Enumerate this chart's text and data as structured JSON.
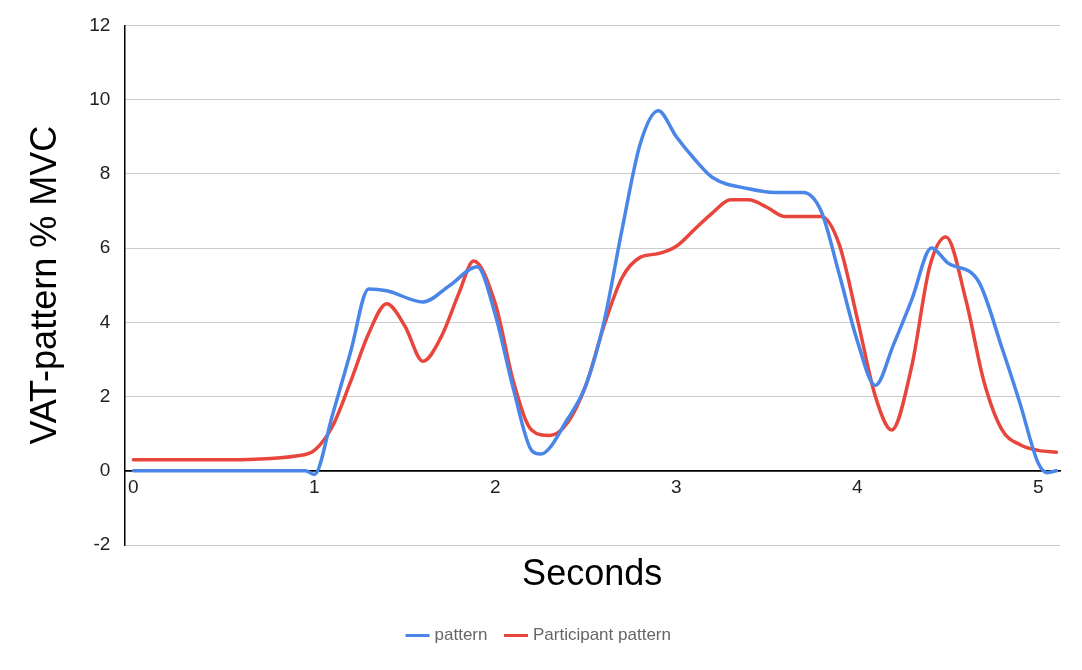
{
  "chart_data": {
    "type": "line",
    "xlabel": "Seconds",
    "ylabel": "VAT-pattern % MVC",
    "xlim": [
      -0.05,
      5.12
    ],
    "xticks": [
      0,
      1,
      2,
      3,
      4,
      5
    ],
    "ylim": [
      -2,
      12
    ],
    "yticks": [
      -2,
      0,
      2,
      4,
      6,
      8,
      10,
      12
    ],
    "grid": "y",
    "legend": "bottom",
    "marker": "none",
    "line_style": "solid",
    "series": [
      {
        "name": "pattern",
        "color": "#4a86e8",
        "x": [
          0,
          0.5,
          0.95,
          1.0,
          1.1,
          1.2,
          1.3,
          1.4,
          1.6,
          1.75,
          1.9,
          2.0,
          2.1,
          2.2,
          2.25,
          2.4,
          2.5,
          2.6,
          2.7,
          2.8,
          2.9,
          3.0,
          3.1,
          3.2,
          3.4,
          3.55,
          3.7,
          3.8,
          3.9,
          4.0,
          4.1,
          4.2,
          4.3,
          4.41,
          4.5,
          4.67,
          4.8,
          4.9,
          5.0,
          5.05,
          5.1
        ],
        "values": [
          0,
          0,
          0,
          -0.1,
          1.5,
          3.2,
          4.9,
          4.85,
          4.55,
          5.0,
          5.5,
          4.2,
          2.2,
          0.55,
          0.45,
          1.4,
          2.3,
          4.0,
          6.5,
          8.8,
          9.7,
          9.0,
          8.4,
          7.9,
          7.6,
          7.5,
          7.5,
          7.0,
          5.3,
          3.5,
          2.3,
          3.4,
          4.6,
          6.0,
          5.6,
          5.1,
          3.3,
          1.8,
          0.2,
          -0.05,
          0
        ]
      },
      {
        "name": "Participant pattern",
        "color": "#e8453c",
        "x": [
          0,
          0.5,
          0.9,
          1.0,
          1.1,
          1.2,
          1.3,
          1.4,
          1.5,
          1.6,
          1.7,
          1.8,
          1.88,
          2.0,
          2.1,
          2.2,
          2.3,
          2.4,
          2.5,
          2.6,
          2.7,
          2.8,
          2.9,
          3.0,
          3.1,
          3.2,
          3.3,
          3.4,
          3.5,
          3.6,
          3.7,
          3.8,
          3.9,
          4.0,
          4.1,
          4.19,
          4.3,
          4.4,
          4.49,
          4.6,
          4.7,
          4.8,
          4.9,
          5.0,
          5.1
        ],
        "values": [
          0.3,
          0.3,
          0.4,
          0.55,
          1.2,
          2.4,
          3.7,
          4.5,
          3.9,
          2.95,
          3.6,
          4.8,
          5.65,
          4.5,
          2.4,
          1.1,
          0.95,
          1.3,
          2.3,
          3.9,
          5.2,
          5.75,
          5.85,
          6.05,
          6.5,
          6.95,
          7.3,
          7.3,
          7.1,
          6.85,
          6.85,
          6.85,
          6.1,
          4.1,
          2.0,
          1.1,
          2.8,
          5.5,
          6.3,
          4.6,
          2.4,
          1.1,
          0.7,
          0.55,
          0.5
        ]
      }
    ]
  }
}
